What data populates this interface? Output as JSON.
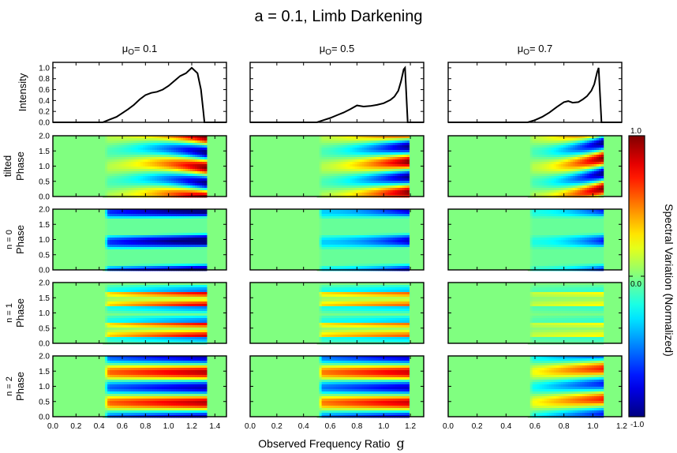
{
  "figure": {
    "title": "a = 0.1, Limb Darkening",
    "xlabel": "Observed Frequency Ratio",
    "xlabel_symbol": "g",
    "colorbar_label": "Spectral Variation (Normalized)",
    "colorbar_ticks": [
      "1.0",
      "0.0",
      "-1.0"
    ]
  },
  "chart_data": {
    "type": "heatmap",
    "columns": [
      {
        "mu_label": "μ",
        "mu_sub": "O",
        "mu_value": "= 0.1",
        "xlim": [
          0.0,
          1.5
        ],
        "xticks": [
          "0.0",
          "0.2",
          "0.4",
          "0.6",
          "0.8",
          "1.0",
          "1.2",
          "1.4"
        ],
        "g_min": 0.43,
        "g_max": 1.31
      },
      {
        "mu_label": "μ",
        "mu_sub": "O",
        "mu_value": "= 0.5",
        "xlim": [
          0.0,
          1.3
        ],
        "xticks": [
          "0.0",
          "0.2",
          "0.4",
          "0.6",
          "0.8",
          "1.0",
          "1.2"
        ],
        "g_min": 0.5,
        "g_max": 1.18
      },
      {
        "mu_label": "μ",
        "mu_sub": "O",
        "mu_value": "= 0.7",
        "xlim": [
          0.0,
          1.2
        ],
        "xticks": [
          "0.0",
          "0.2",
          "0.4",
          "0.6",
          "0.8",
          "1.0",
          "1.2"
        ],
        "g_min": 0.55,
        "g_max": 1.06
      }
    ],
    "rows": [
      {
        "label_top": "",
        "label": "Intensity",
        "yticks": [
          "0.0",
          "0.2",
          "0.4",
          "0.6",
          "0.8",
          "1.0"
        ],
        "ylim": [
          0,
          1.1
        ]
      },
      {
        "label_top": "tilted",
        "label": "Phase",
        "yticks": [
          "0.0",
          "0.5",
          "1.0",
          "1.5",
          "2.0"
        ],
        "ylim": [
          0,
          2
        ]
      },
      {
        "label_top": "n = 0",
        "label": "Phase",
        "yticks": [
          "0.0",
          "0.5",
          "1.0",
          "1.5",
          "2.0"
        ],
        "ylim": [
          0,
          2
        ]
      },
      {
        "label_top": "n = 1",
        "label": "Phase",
        "yticks": [
          "0.0",
          "0.5",
          "1.0",
          "1.5",
          "2.0"
        ],
        "ylim": [
          0,
          2
        ]
      },
      {
        "label_top": "n = 2",
        "label": "Phase",
        "yticks": [
          "0.0",
          "0.5",
          "1.0",
          "1.5",
          "2.0"
        ],
        "ylim": [
          0,
          2
        ]
      }
    ],
    "intensity_profiles": [
      {
        "x": [
          0.0,
          0.43,
          0.5,
          0.55,
          0.6,
          0.65,
          0.7,
          0.75,
          0.8,
          0.85,
          0.9,
          0.95,
          1.0,
          1.05,
          1.1,
          1.15,
          1.2,
          1.25,
          1.28,
          1.3,
          1.31,
          1.5
        ],
        "y": [
          0,
          0,
          0.06,
          0.1,
          0.17,
          0.24,
          0.32,
          0.42,
          0.5,
          0.54,
          0.56,
          0.6,
          0.67,
          0.76,
          0.85,
          0.9,
          1.0,
          0.9,
          0.6,
          0.2,
          0,
          0
        ]
      },
      {
        "x": [
          0.0,
          0.5,
          0.55,
          0.6,
          0.65,
          0.7,
          0.75,
          0.8,
          0.85,
          0.9,
          0.95,
          1.0,
          1.05,
          1.08,
          1.11,
          1.13,
          1.15,
          1.16,
          1.17,
          1.18,
          1.3
        ],
        "y": [
          0,
          0,
          0.04,
          0.08,
          0.13,
          0.18,
          0.24,
          0.31,
          0.29,
          0.3,
          0.32,
          0.35,
          0.41,
          0.47,
          0.58,
          0.75,
          0.97,
          1.0,
          0.5,
          0,
          0
        ]
      },
      {
        "x": [
          0.0,
          0.55,
          0.6,
          0.65,
          0.7,
          0.75,
          0.8,
          0.83,
          0.86,
          0.9,
          0.93,
          0.96,
          0.99,
          1.01,
          1.03,
          1.04,
          1.05,
          1.06,
          1.2
        ],
        "y": [
          0,
          0,
          0.04,
          0.1,
          0.18,
          0.28,
          0.37,
          0.39,
          0.36,
          0.37,
          0.42,
          0.48,
          0.58,
          0.7,
          0.92,
          1.0,
          0.5,
          0,
          0
        ]
      }
    ],
    "colorbar": {
      "min": -1.0,
      "max": 1.0,
      "colormap": "jet"
    },
    "colors": {
      "background_field": "#80ff80",
      "line": "#000000"
    }
  }
}
